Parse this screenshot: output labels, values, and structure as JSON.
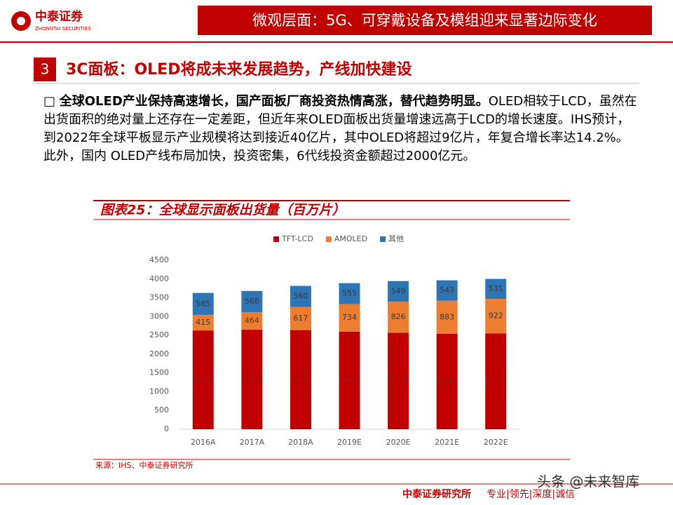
{
  "header": {
    "logo_cn": "中泰证券",
    "logo_en": "ZHONGTAI SECURITIES",
    "title": "微观层面：5G、可穿戴设备及模组迎来显著边际变化"
  },
  "section": {
    "number": "3",
    "title": "3C面板：OLED将成未来发展趋势，产线加快建设"
  },
  "body": {
    "bullet": "□",
    "lead": "全球OLED产业保持高速增长，国产面板厂商投资热情高涨，替代趋势明显。",
    "text": "OLED相较于LCD，虽然在出货面积的绝对量上还存在一定差距，但近年来OLED面板出货量增速远高于LCD的增长速度。IHS预计，到2022年全球平板显示产业规模将达到接近40亿片，其中OLED将超过9亿片，年复合增长率达14.2%。此外，国内 OLED产线布局加快，投资密集，6代线投资金额超过2000亿元。"
  },
  "chart_data": {
    "type": "stacked-bar",
    "title": "图表25：全球显示面板出货量（百万片）",
    "categories": [
      "2016A",
      "2017A",
      "2018A",
      "2019E",
      "2020E",
      "2021E",
      "2022E"
    ],
    "series": [
      {
        "name": "TFT-LCD",
        "color": "#c00000",
        "values": [
          2630,
          2650,
          2640,
          2600,
          2570,
          2540,
          2550
        ]
      },
      {
        "name": "AMOLED",
        "color": "#ed7d31",
        "values": [
          415,
          464,
          617,
          734,
          826,
          883,
          922
        ]
      },
      {
        "name": "其他",
        "color": "#2e75b6",
        "values": [
          585,
          568,
          560,
          555,
          549,
          543,
          531
        ]
      }
    ],
    "ylim": [
      0,
      4500
    ],
    "yticks": [
      0,
      500,
      1000,
      1500,
      2000,
      2500,
      3000,
      3500,
      4000,
      4500
    ],
    "source": "来源：IHS、中泰证券研究所"
  },
  "footer": {
    "org": "中泰证券研究所",
    "motto": "专业|领先|深度|诚信",
    "watermark": "头条 @未来智库"
  }
}
